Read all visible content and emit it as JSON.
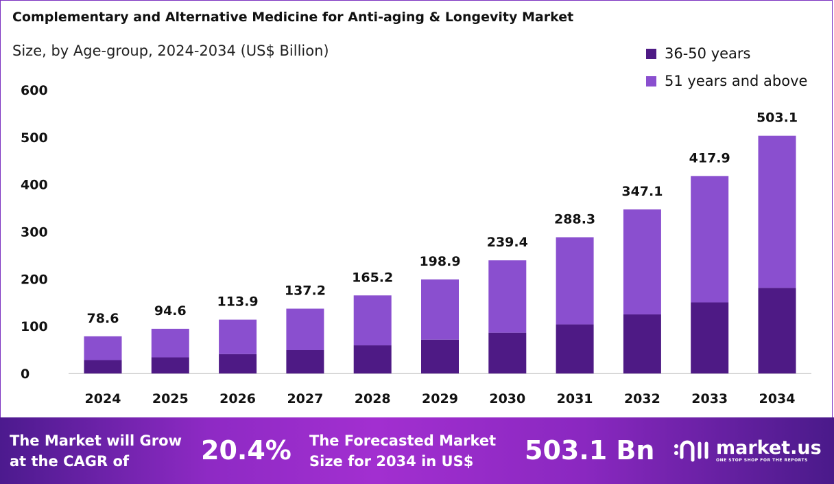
{
  "chart_data": {
    "type": "bar",
    "stacked": true,
    "title": "Complementary and Alternative Medicine for Anti-aging & Longevity Market",
    "subtitle": "Size, by Age-group, 2024-2034 (US$ Billion)",
    "categories": [
      "2024",
      "2025",
      "2026",
      "2027",
      "2028",
      "2029",
      "2030",
      "2031",
      "2032",
      "2033",
      "2034"
    ],
    "series": [
      {
        "name": "36-50 years",
        "color": "#4e1a85",
        "values": [
          28.3,
          34.1,
          41.0,
          49.4,
          59.5,
          71.6,
          86.2,
          103.8,
          125.0,
          150.4,
          181.1
        ]
      },
      {
        "name": "51 years and above",
        "color": "#8a4fcf",
        "values": [
          50.3,
          60.5,
          72.9,
          87.8,
          105.7,
          127.3,
          153.2,
          184.5,
          222.1,
          267.5,
          322.0
        ]
      }
    ],
    "totals": [
      "78.6",
      "94.6",
      "113.9",
      "137.2",
      "165.2",
      "198.9",
      "239.4",
      "288.3",
      "347.1",
      "417.9",
      "503.1"
    ],
    "ylim": [
      0,
      600
    ],
    "yticks": [
      "0",
      "100",
      "200",
      "300",
      "400",
      "500",
      "600"
    ],
    "grid": false,
    "legend_position": "top-right"
  },
  "banner": {
    "cagr_text_1": "The Market will Grow",
    "cagr_text_2": "at the CAGR of",
    "cagr_value": "20.4%",
    "forecast_text_1": "The Forecasted Market",
    "forecast_text_2": "Size for 2034 in US$",
    "forecast_value": "503.1 Bn",
    "logo_name": "market.us",
    "logo_tagline": "ONE STOP SHOP FOR THE REPORTS"
  }
}
